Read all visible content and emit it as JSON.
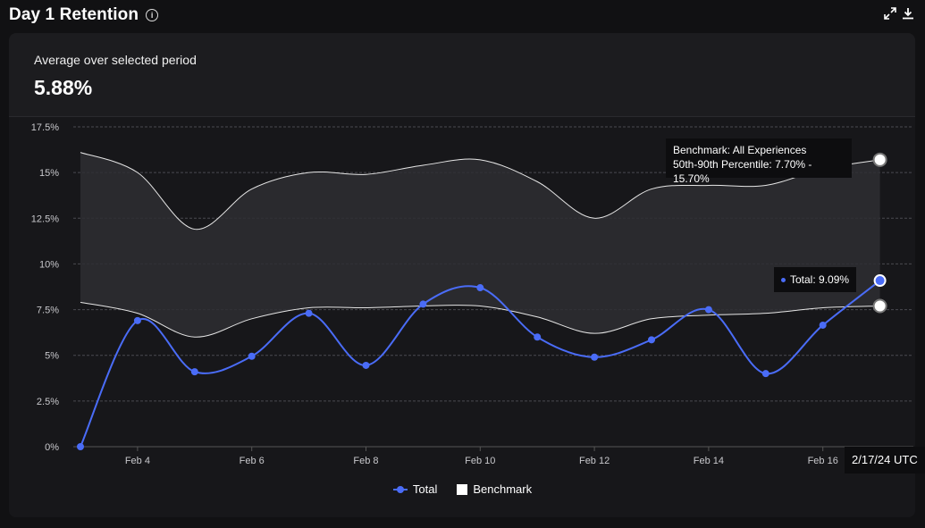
{
  "header": {
    "title": "Day 1 Retention",
    "info_icon": "info-icon",
    "expand_icon": "expand-icon",
    "download_icon": "download-icon"
  },
  "summary": {
    "label": "Average over selected period",
    "value": "5.88%"
  },
  "tooltips": {
    "benchmark_line1": "Benchmark: All Experiences",
    "benchmark_line2": "50th-90th Percentile: 7.70% - 15.70%",
    "total": "Total: 9.09%",
    "date": "2/17/24 UTC"
  },
  "legend": {
    "total": "Total",
    "benchmark": "Benchmark"
  },
  "colors": {
    "total": "#4a6cf7",
    "benchmark_band": "#2e2e33",
    "benchmark_line": "#ffffff"
  },
  "chart_data": {
    "type": "line",
    "title": "Day 1 Retention",
    "x": [
      "Feb 3",
      "Feb 4",
      "Feb 5",
      "Feb 6",
      "Feb 7",
      "Feb 8",
      "Feb 9",
      "Feb 10",
      "Feb 11",
      "Feb 12",
      "Feb 13",
      "Feb 14",
      "Feb 15",
      "Feb 16",
      "Feb 17"
    ],
    "x_tick_labels": [
      "Feb 4",
      "Feb 6",
      "Feb 8",
      "Feb 10",
      "Feb 12",
      "Feb 14",
      "Feb 16"
    ],
    "y_tick_labels": [
      "0%",
      "2.5%",
      "5%",
      "7.5%",
      "10%",
      "12.5%",
      "15%",
      "17.5%"
    ],
    "ylim": [
      0,
      17.5
    ],
    "series": [
      {
        "name": "Total",
        "values": [
          0.0,
          6.9,
          4.1,
          4.95,
          7.3,
          4.45,
          7.8,
          8.7,
          6.0,
          4.9,
          5.85,
          7.5,
          4.0,
          6.65,
          9.09
        ]
      },
      {
        "name": "Benchmark 90th percentile",
        "values": [
          16.1,
          15.0,
          11.9,
          14.1,
          15.0,
          14.9,
          15.4,
          15.7,
          14.5,
          12.5,
          14.1,
          14.3,
          14.3,
          15.2,
          15.7
        ]
      },
      {
        "name": "Benchmark 50th percentile",
        "values": [
          7.9,
          7.3,
          6.0,
          7.0,
          7.6,
          7.6,
          7.7,
          7.7,
          7.1,
          6.2,
          7.0,
          7.2,
          7.3,
          7.6,
          7.7
        ]
      }
    ],
    "legend": [
      "Total",
      "Benchmark"
    ]
  }
}
